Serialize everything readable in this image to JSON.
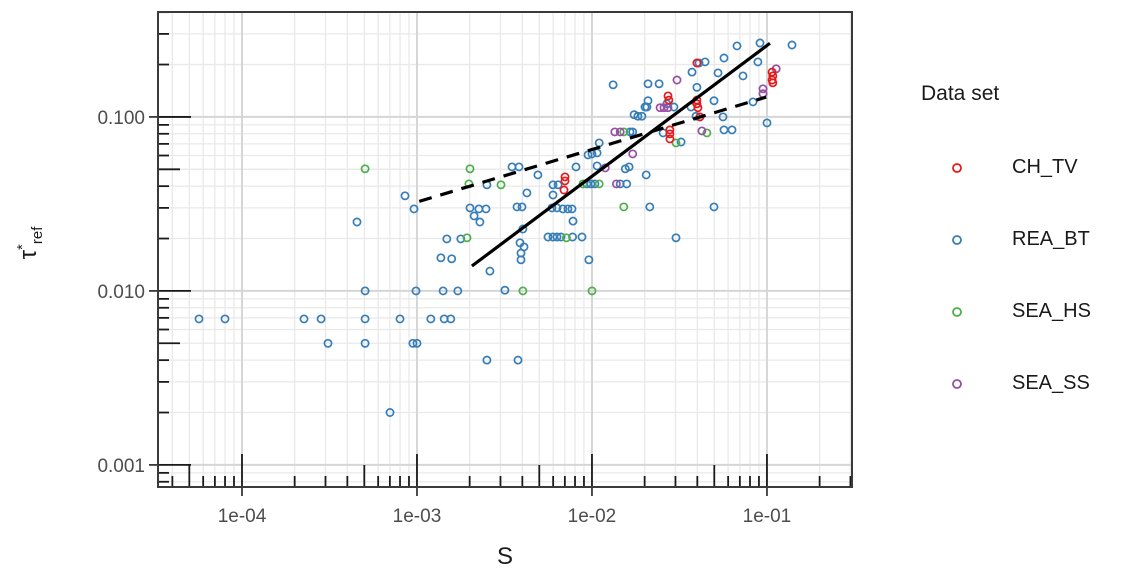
{
  "axes": {
    "x": {
      "title": "S",
      "scale": "log",
      "tick_labels": [
        "1e-04",
        "1e-03",
        "1e-02",
        "1e-01"
      ],
      "tick_values": [
        0.0001,
        0.001,
        0.01,
        0.1
      ],
      "log_min": -4.48,
      "log_max": -0.514
    },
    "y": {
      "title_symbol": "τ",
      "title_sup": "*",
      "title_sub": "ref",
      "scale": "log",
      "tick_labels": [
        "0.100",
        "0.010",
        "0.001"
      ],
      "tick_values": [
        0.1,
        0.01,
        0.001
      ],
      "log_min": -3.127,
      "log_max": -0.397
    }
  },
  "legend": {
    "title": "Data set"
  },
  "style": {
    "grid_major": "#d6d6d6",
    "grid_minor": "#e9e9e9",
    "panel_border": "#3a3a3a",
    "tick_label_color": "#4d4d4d",
    "tick_color": "#1a1a1a",
    "line_color": "#000000",
    "background": "#ffffff"
  },
  "chart_data": {
    "type": "scatter",
    "x_scale": "log",
    "y_scale": "log",
    "xlabel": "S",
    "ylabel": "τ*ref",
    "legend_title": "Data set",
    "marker": "open-circle",
    "series": [
      {
        "name": "CH_TV",
        "color": "#E41A1C",
        "points": [
          [
            0.0398,
            0.204
          ],
          [
            0.00701,
            0.0452
          ],
          [
            0.00701,
            0.0429
          ],
          [
            0.00692,
            0.038
          ],
          [
            0.0272,
            0.132
          ],
          [
            0.0275,
            0.125
          ],
          [
            0.0398,
            0.125
          ],
          [
            0.0398,
            0.119
          ],
          [
            0.0403,
            0.113
          ],
          [
            0.0414,
            0.1
          ],
          [
            0.0279,
            0.0842
          ],
          [
            0.0279,
            0.0799
          ],
          [
            0.0279,
            0.0748
          ],
          [
            0.107,
            0.181
          ],
          [
            0.108,
            0.172
          ],
          [
            0.107,
            0.163
          ],
          [
            0.108,
            0.157
          ]
        ]
      },
      {
        "name": "REA_BT",
        "color": "#377EB8",
        "points": [
          [
            0.0674,
            0.256
          ],
          [
            0.0912,
            0.266
          ],
          [
            0.139,
            0.259
          ],
          [
            0.0409,
            0.204
          ],
          [
            0.0443,
            0.207
          ],
          [
            0.0568,
            0.218
          ],
          [
            0.0888,
            0.207
          ],
          [
            0.0373,
            0.181
          ],
          [
            0.0525,
            0.179
          ],
          [
            0.073,
            0.172
          ],
          [
            0.0132,
            0.153
          ],
          [
            0.0209,
            0.155
          ],
          [
            0.0242,
            0.155
          ],
          [
            0.0398,
            0.148
          ],
          [
            0.0209,
            0.124
          ],
          [
            0.0206,
            0.114
          ],
          [
            0.0268,
            0.119
          ],
          [
            0.0294,
            0.114
          ],
          [
            0.0498,
            0.124
          ],
          [
            0.0368,
            0.114
          ],
          [
            0.0393,
            0.101
          ],
          [
            0.0414,
            0.1
          ],
          [
            0.0561,
            0.1
          ],
          [
            0.0174,
            0.103
          ],
          [
            0.0183,
            0.101
          ],
          [
            0.0193,
            0.101
          ],
          [
            0.0201,
            0.114
          ],
          [
            0.1,
            0.0924
          ],
          [
            0.0832,
            0.122
          ],
          [
            0.0568,
            0.0842
          ],
          [
            0.0631,
            0.0842
          ],
          [
            0.0255,
            0.0809
          ],
          [
            0.0323,
            0.0718
          ],
          [
            0.0165,
            0.082
          ],
          [
            0.0171,
            0.082
          ],
          [
            0.011,
            0.0709
          ],
          [
            0.00949,
            0.0605
          ],
          [
            0.01,
            0.0613
          ],
          [
            0.0107,
            0.0621
          ],
          [
            0.00811,
            0.0516
          ],
          [
            0.0107,
            0.0523
          ],
          [
            0.0155,
            0.0503
          ],
          [
            0.0163,
            0.0516
          ],
          [
            0.0204,
            0.0464
          ],
          [
            0.00491,
            0.0464
          ],
          [
            0.00349,
            0.0516
          ],
          [
            0.00383,
            0.0516
          ],
          [
            0.00599,
            0.0407
          ],
          [
            0.0064,
            0.0407
          ],
          [
            0.00936,
            0.0412
          ],
          [
            0.00986,
            0.0412
          ],
          [
            0.0104,
            0.0412
          ],
          [
            0.0145,
            0.0412
          ],
          [
            0.0158,
            0.0412
          ],
          [
            0.00599,
            0.0356
          ],
          [
            0.00425,
            0.0366
          ],
          [
            0.00373,
            0.0304
          ],
          [
            0.00398,
            0.0304
          ],
          [
            0.00591,
            0.03
          ],
          [
            0.00631,
            0.03
          ],
          [
            0.00682,
            0.0296
          ],
          [
            0.00729,
            0.0296
          ],
          [
            0.00769,
            0.0296
          ],
          [
            0.0214,
            0.0304
          ],
          [
            0.0498,
            0.0304
          ],
          [
            0.00779,
            0.0252
          ],
          [
            0.00403,
            0.0227
          ],
          [
            0.00561,
            0.0204
          ],
          [
            0.00599,
            0.0204
          ],
          [
            0.00631,
            0.0204
          ],
          [
            0.00665,
            0.0204
          ],
          [
            0.00775,
            0.0204
          ],
          [
            0.00877,
            0.0204
          ],
          [
            0.0302,
            0.0202
          ],
          [
            0.00409,
            0.0179
          ],
          [
            0.00251,
            0.0407
          ],
          [
            0.000854,
            0.0352
          ],
          [
            0.000961,
            0.0296
          ],
          [
            0.00201,
            0.03
          ],
          [
            0.00212,
            0.027
          ],
          [
            0.00226,
            0.0296
          ],
          [
            0.00248,
            0.0296
          ],
          [
            0.00229,
            0.0249
          ],
          [
            0.000454,
            0.0249
          ],
          [
            0.00148,
            0.0199
          ],
          [
            0.00178,
            0.0199
          ],
          [
            0.00137,
            0.0155
          ],
          [
            0.00158,
            0.0153
          ],
          [
            0.00261,
            0.013
          ],
          [
            0.00388,
            0.0189
          ],
          [
            0.00393,
            0.0165
          ],
          [
            0.00393,
            0.0151
          ],
          [
            0.00961,
            0.0151
          ],
          [
            0.000505,
            0.01
          ],
          [
            0.000987,
            0.01
          ],
          [
            0.00141,
            0.01
          ],
          [
            0.00171,
            0.01
          ],
          [
            0.00318,
            0.0101
          ],
          [
            5.68e-05,
            0.0069
          ],
          [
            8e-05,
            0.0069
          ],
          [
            0.000226,
            0.0069
          ],
          [
            0.000283,
            0.0069
          ],
          [
            0.000505,
            0.0069
          ],
          [
            0.0008,
            0.0069
          ],
          [
            0.0012,
            0.0069
          ],
          [
            0.00143,
            0.0069
          ],
          [
            0.00156,
            0.0069
          ],
          [
            0.00031,
            0.005
          ],
          [
            0.000505,
            0.005
          ],
          [
            0.000948,
            0.005
          ],
          [
            0.001,
            0.005
          ],
          [
            0.00251,
            0.004
          ],
          [
            0.00378,
            0.004
          ],
          [
            0.000701,
            0.002
          ]
        ]
      },
      {
        "name": "SEA_HS",
        "color": "#4DAF4A",
        "points": [
          [
            0.000505,
            0.0503
          ],
          [
            0.00201,
            0.0503
          ],
          [
            0.00198,
            0.0412
          ],
          [
            0.00302,
            0.0407
          ],
          [
            0.0152,
            0.082
          ],
          [
            0.0454,
            0.0809
          ],
          [
            0.0302,
            0.0709
          ],
          [
            0.0152,
            0.0304
          ],
          [
            0.00714,
            0.0202
          ],
          [
            0.00193,
            0.0202
          ],
          [
            0.00403,
            0.01
          ],
          [
            0.01,
            0.01
          ],
          [
            0.00889,
            0.0412
          ],
          [
            0.011,
            0.0412
          ]
        ]
      },
      {
        "name": "SEA_SS",
        "color": "#984EA3",
        "points": [
          [
            0.0306,
            0.163
          ],
          [
            0.113,
            0.189
          ],
          [
            0.0949,
            0.145
          ],
          [
            0.0949,
            0.136
          ],
          [
            0.0245,
            0.113
          ],
          [
            0.0258,
            0.113
          ],
          [
            0.0272,
            0.113
          ],
          [
            0.0135,
            0.082
          ],
          [
            0.0145,
            0.082
          ],
          [
            0.0171,
            0.0613
          ],
          [
            0.0138,
            0.0412
          ],
          [
            0.0119,
            0.0509
          ],
          [
            0.0425,
            0.0831
          ]
        ]
      }
    ],
    "lines": [
      {
        "style": "solid",
        "x1": 0.00206,
        "y1": 0.0139,
        "x2": 0.104,
        "y2": 0.265
      },
      {
        "style": "dashed",
        "x1": 0.00103,
        "y1": 0.0327,
        "x2": 0.099,
        "y2": 0.13
      }
    ]
  }
}
